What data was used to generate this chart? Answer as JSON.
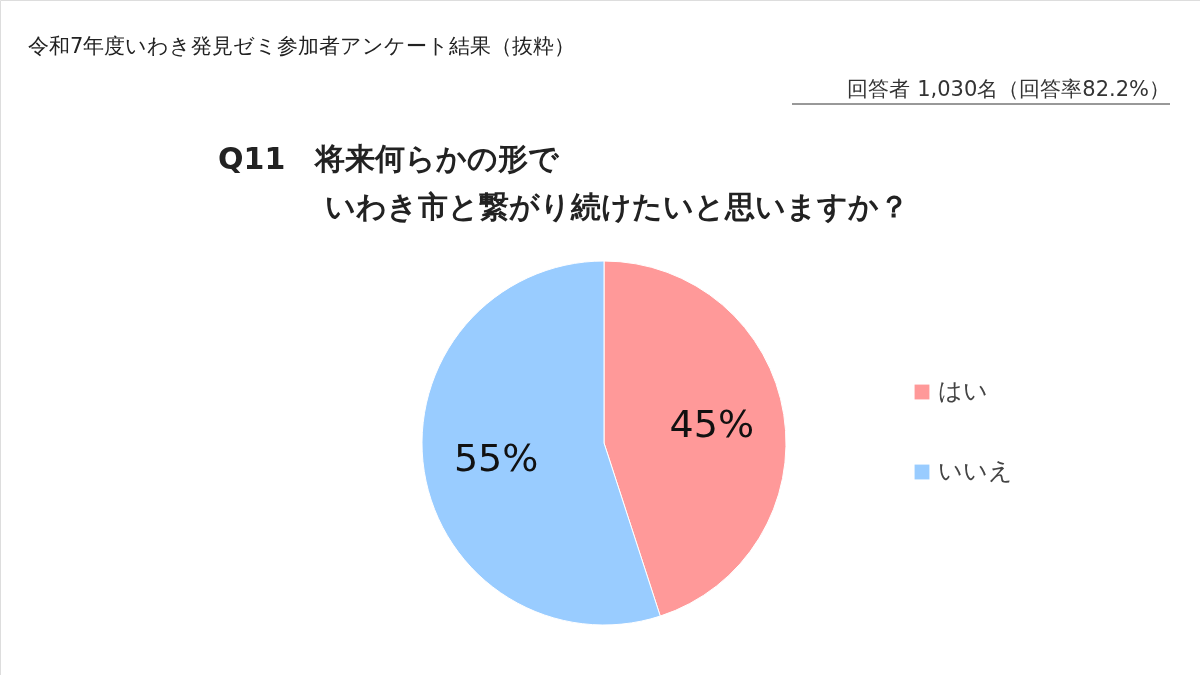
{
  "chart_data": {
    "type": "pie",
    "title": "令和7年度いわき発見ゼミ参加者アンケート結果（抜粋）",
    "subtitle": "回答者 1,030名（回答率82.2%）",
    "annotations": [
      "Q11　将来何らかの形で",
      "いわき市と繋がり続けたいと思いますか？"
    ],
    "categories": [
      "はい",
      "いいえ"
    ],
    "values": [
      45,
      55
    ],
    "colors": [
      "#ff9999",
      "#99ccff"
    ],
    "value_labels": [
      "45%",
      "55%"
    ],
    "legend": "right"
  }
}
